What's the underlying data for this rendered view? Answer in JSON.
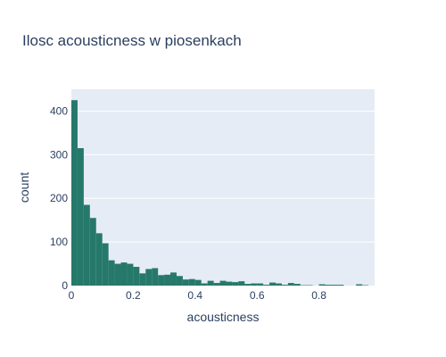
{
  "chart_data": {
    "type": "bar",
    "title": "Ilosc acousticness w piosenkach",
    "xlabel": "acousticness",
    "ylabel": "count",
    "xlim": [
      0,
      0.98
    ],
    "ylim": [
      0,
      450
    ],
    "bin_start": 0,
    "bin_width": 0.02,
    "values": [
      425,
      315,
      185,
      155,
      120,
      97,
      58,
      50,
      53,
      50,
      43,
      28,
      38,
      40,
      24,
      25,
      30,
      22,
      14,
      15,
      13,
      5,
      11,
      6,
      11,
      9,
      8,
      10,
      4,
      5,
      5,
      2,
      7,
      5,
      2,
      6,
      4,
      1,
      1,
      0,
      3,
      2,
      2,
      2,
      0,
      0,
      3,
      1,
      0
    ],
    "x_ticks": [
      0,
      0.2,
      0.4,
      0.6,
      0.8
    ],
    "x_tick_labels": [
      "0",
      "0.2",
      "0.4",
      "0.6",
      "0.8"
    ],
    "y_ticks": [
      0,
      100,
      200,
      300,
      400
    ],
    "y_tick_labels": [
      "0",
      "100",
      "200",
      "300",
      "400"
    ],
    "grid": true,
    "colors": {
      "bar": "#26796a",
      "plot_bg": "#e5ecf6",
      "grid": "#ffffff",
      "text": "#2a3f5f"
    }
  }
}
